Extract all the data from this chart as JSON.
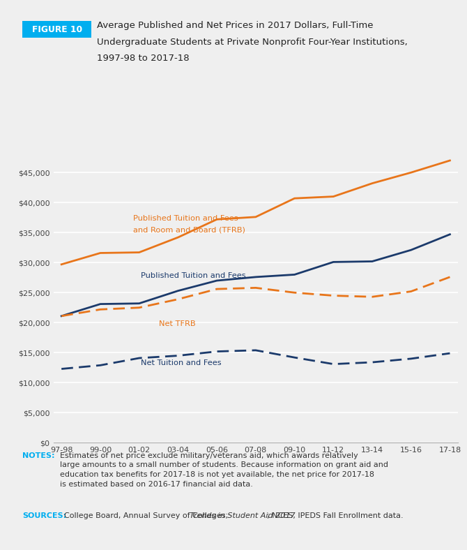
{
  "years": [
    "97-98",
    "99-00",
    "01-02",
    "03-04",
    "05-06",
    "07-08",
    "09-10",
    "11-12",
    "13-14",
    "15-16",
    "17-18"
  ],
  "published_tfrb": [
    29700,
    31600,
    31700,
    34200,
    37200,
    37600,
    40700,
    41000,
    43200,
    45000,
    47000
  ],
  "published_tf": [
    21100,
    23100,
    23200,
    25300,
    27000,
    27600,
    28000,
    30100,
    30200,
    32100,
    34700
  ],
  "net_tfrb": [
    21100,
    22200,
    22500,
    23900,
    25600,
    25800,
    25000,
    24500,
    24300,
    25200,
    27600
  ],
  "net_tf": [
    12300,
    12900,
    14100,
    14500,
    15200,
    15400,
    14200,
    13100,
    13400,
    14000,
    14900
  ],
  "color_orange": "#E8751A",
  "color_navy": "#1B3A6B",
  "bg_color": "#EFEFEF",
  "title_label": "FIGURE 10",
  "title_label_bg": "#00AEEF",
  "title_text_line1": "Average Published and Net Prices in 2017 Dollars, Full-Time",
  "title_text_line2": "Undergraduate Students at Private Nonprofit Four-Year Institutions,",
  "title_text_line3": "1997-98 to 2017-18",
  "ylabel_ticks": [
    0,
    5000,
    10000,
    15000,
    20000,
    25000,
    30000,
    35000,
    40000,
    45000
  ],
  "notes_label": "NOTES:",
  "notes_body": "Estimates of net price exclude military/veterans aid, which awards relatively large amounts to a small number of students. Because information on grant aid and education tax benefits for 2017-18 is not yet available, the net price for 2017-18 is estimated based on 2016-17 financial aid data.",
  "sources_label": "SOURCES:",
  "sources_body1": "College Board, Annual Survey of Colleges; ",
  "sources_italic": "Trends in Student Aid 2017",
  "sources_body2": "; NCES, IPEDS Fall Enrollment data.",
  "ann_pub_tfrb_line1": "Published Tuition and Fees",
  "ann_pub_tfrb_line2": "and Room and Board (TFRB)",
  "ann_pub_tf": "Published Tuition and Fees",
  "ann_net_tfrb": "Net TFRB",
  "ann_net_tf": "Net Tuition and Fees"
}
